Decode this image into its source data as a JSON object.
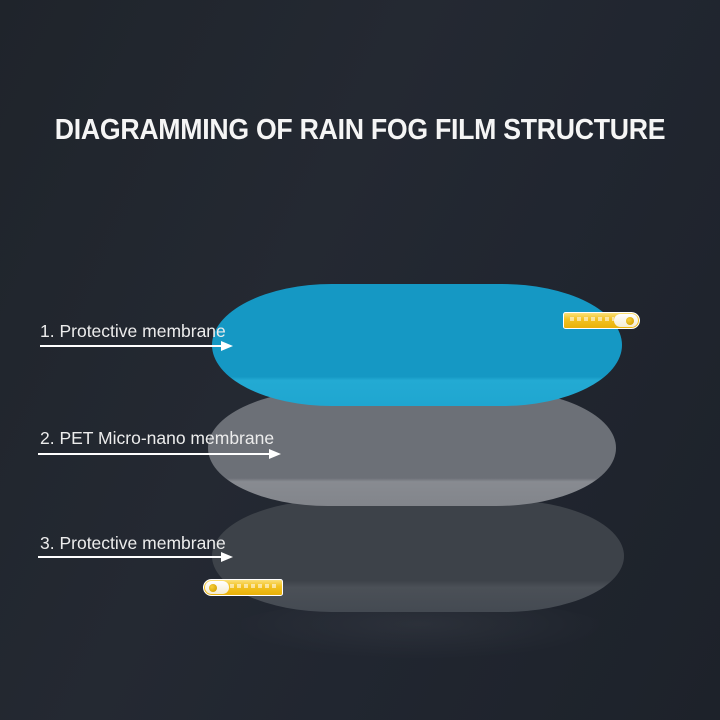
{
  "title": "DIAGRAMMING OF RAIN FOG FILM STRUCTURE",
  "layers": [
    {
      "number": "1",
      "label": "1. Protective membrane",
      "color": "#1598c4",
      "edge_highlight": "#23aad3"
    },
    {
      "number": "2",
      "label": "2. PET Micro-nano membrane",
      "color": "#6c7077",
      "edge_highlight": "#888b91"
    },
    {
      "number": "3",
      "label": "3. Protective membrane",
      "color": "#3d4249",
      "edge_highlight": "#4b5057"
    }
  ],
  "icons": {
    "pull_tab_right": "pull-tab-sticker",
    "pull_tab_left": "pull-tab-sticker"
  },
  "colors": {
    "background": "#21262e",
    "title_text": "#f5f5f5",
    "label_text": "#ececec",
    "arrow": "#ffffff",
    "tab_yellow": "#f2bb0d",
    "tab_tip_white": "#ffffff",
    "tab_dot_gold": "#d9a70a"
  }
}
